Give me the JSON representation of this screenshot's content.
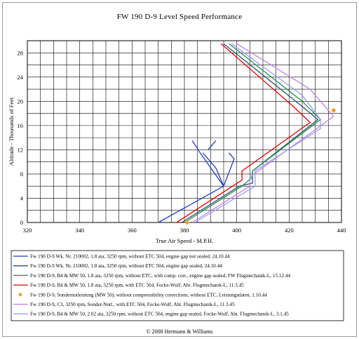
{
  "chart_data": {
    "type": "line",
    "title": "FW 190 D-9 Level Speed Performance",
    "xlabel": "True Air Speed - M.P.H.",
    "ylabel": "Altitude - Thousands of Feet",
    "xlim": [
      320,
      440
    ],
    "ylim": [
      0,
      30
    ],
    "xticks": [
      320,
      340,
      360,
      380,
      400,
      420,
      440
    ],
    "yticks": [
      0,
      4,
      8,
      12,
      16,
      20,
      24,
      28
    ],
    "grid": true,
    "legend_position": "bottom",
    "series": [
      {
        "name": "Fw 190 D-9 Wk. Nr. 210002, 1.8 ata,  3250 rpm, without ETC 504, engine gap not sealed. 24.10.44",
        "color": "#1f3fbf",
        "segments": [
          [
            [
              370,
              0
            ],
            [
              395,
              6
            ]
          ],
          [
            [
              395,
              6
            ],
            [
              392,
              9
            ],
            [
              387,
              11.5
            ]
          ],
          [
            [
              395,
              6
            ],
            [
              386,
              11.5
            ],
            [
              383,
              13.5
            ]
          ],
          [
            [
              389,
              12
            ],
            [
              392,
              13.5
            ]
          ],
          [
            [
              395,
              6
            ],
            [
              399,
              10.5
            ],
            [
              397,
              11.5
            ]
          ]
        ]
      },
      {
        "name": "Fw 190 D-9 Wk. Nr. 210002, 1.8 ata,  3250 rpm, without ETC 504, engine gap sealed, 24.10.44",
        "color": "#2f4f6f",
        "segments": [
          [
            [
              379,
              0
            ],
            [
              401,
              6
            ],
            [
              406,
              6.5
            ],
            [
              406,
              8.5
            ],
            [
              431,
              17
            ],
            [
              424,
              19.5
            ],
            [
              395,
              29.5
            ]
          ]
        ]
      },
      {
        "name": "Fw 190 D-9, B4 & MW 50, 1.8 ata, 3250 rpm, without ETC, with comp. corr., engine gap sealed, FW Flugmechanik-L, 15.12.44",
        "color": "#1f8f4f",
        "segments": [
          [
            [
              380,
              0
            ],
            [
              402,
              6
            ],
            [
              406,
              7.5
            ],
            [
              406,
              8.5
            ],
            [
              432,
              17
            ],
            [
              425,
              20
            ],
            [
              397,
              29.5
            ]
          ]
        ]
      },
      {
        "name": "Fw 190 D-9, B4 & MW 50, 1.8 ata, 3250 rpm, with ETC 504, Focke-Wulf, Abt. Flugmechanik-L, 11.3.45",
        "color": "#e00000",
        "segments": [
          [
            [
              377,
              0
            ],
            [
              402,
              7
            ],
            [
              402,
              8.5
            ],
            [
              428,
              16.5
            ],
            [
              422,
              19
            ],
            [
              394,
              29.5
            ]
          ]
        ]
      },
      {
        "name": "Fw 190 D-9, Sondernotleistung (MW 50), without compressibility corrections, without ETC, Leistungsdaten, 1.10.44",
        "color": "#f0a020",
        "marker_only": true,
        "points": [
          [
            381,
            0
          ],
          [
            437,
            18.5
          ]
        ]
      },
      {
        "name": "Fw 190 D-9, C3, 3250 rpm, Sonder-Notl., with ETC 504,  Focke-Wulf, Abt. Flugmechanik-L, 11.3.45",
        "color": "#c080e0",
        "segments": [
          [
            [
              383,
              0
            ],
            [
              405,
              6
            ],
            [
              405,
              7.5
            ],
            [
              437,
              17.5
            ],
            [
              428,
              22
            ],
            [
              400,
              29.5
            ]
          ]
        ]
      },
      {
        "name": "Fw 190 D-9, B4 & MW 50, 2.02 ata, 3250 rpm, without ETC 504, engine gap sealed, Focke-Wulf, Abt. Flugmechanik-L, 3.1.45",
        "color": "#9b9bf5",
        "segments": [
          [
            [
              384,
              0
            ],
            [
              407,
              6
            ],
            [
              407,
              8.5
            ],
            [
              432,
              15.5
            ],
            [
              432,
              17
            ],
            [
              425,
              21
            ],
            [
              398,
              29.5
            ]
          ]
        ]
      }
    ]
  },
  "footer": {
    "copyright": "© 2008 Hermann & Williams"
  }
}
